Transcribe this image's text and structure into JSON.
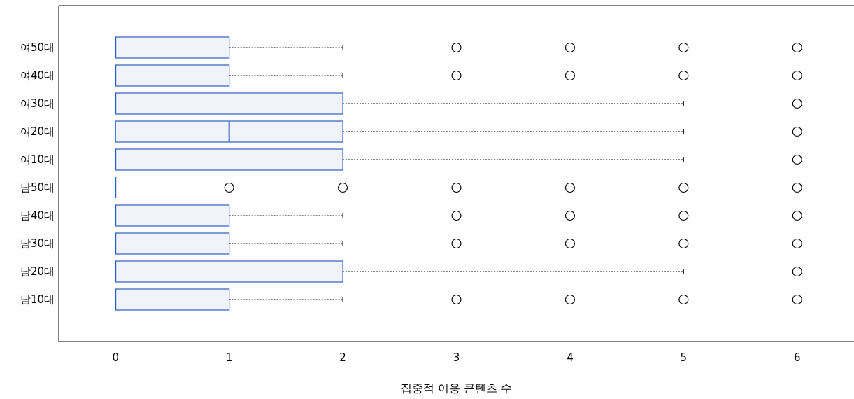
{
  "chart_data": {
    "type": "box",
    "orientation": "horizontal",
    "xlabel": "집중적 이용 콘텐츠 수",
    "categories": [
      "여50대",
      "여40대",
      "여30대",
      "여20대",
      "여10대",
      "남50대",
      "남40대",
      "남30대",
      "남20대",
      "남10대"
    ],
    "xlim": [
      -0.5,
      6.5
    ],
    "xticks": [
      0,
      1,
      2,
      3,
      4,
      5,
      6
    ],
    "grid": false,
    "color": "#2f5fc4",
    "boxes": [
      {
        "low": 0,
        "q1": 0,
        "median": 0,
        "q3": 1,
        "high": 2,
        "outliers": [
          3,
          4,
          5,
          6
        ]
      },
      {
        "low": 0,
        "q1": 0,
        "median": 0,
        "q3": 1,
        "high": 2,
        "outliers": [
          3,
          4,
          5,
          6
        ]
      },
      {
        "low": 0,
        "q1": 0,
        "median": 0,
        "q3": 2,
        "high": 5,
        "outliers": [
          6
        ]
      },
      {
        "low": 0,
        "q1": 0,
        "median": 1,
        "q3": 2,
        "high": 5,
        "outliers": [
          6
        ]
      },
      {
        "low": 0,
        "q1": 0,
        "median": 0,
        "q3": 2,
        "high": 5,
        "outliers": [
          6
        ]
      },
      {
        "low": 0,
        "q1": 0,
        "median": 0,
        "q3": 0,
        "high": 0,
        "outliers": [
          1,
          2,
          3,
          4,
          5,
          6
        ]
      },
      {
        "low": 0,
        "q1": 0,
        "median": 0,
        "q3": 1,
        "high": 2,
        "outliers": [
          3,
          4,
          5,
          6
        ]
      },
      {
        "low": 0,
        "q1": 0,
        "median": 0,
        "q3": 1,
        "high": 2,
        "outliers": [
          3,
          4,
          5,
          6
        ]
      },
      {
        "low": 0,
        "q1": 0,
        "median": 0,
        "q3": 2,
        "high": 5,
        "outliers": [
          6
        ]
      },
      {
        "low": 0,
        "q1": 0,
        "median": 0,
        "q3": 1,
        "high": 2,
        "outliers": [
          3,
          4,
          5,
          6
        ]
      }
    ]
  }
}
